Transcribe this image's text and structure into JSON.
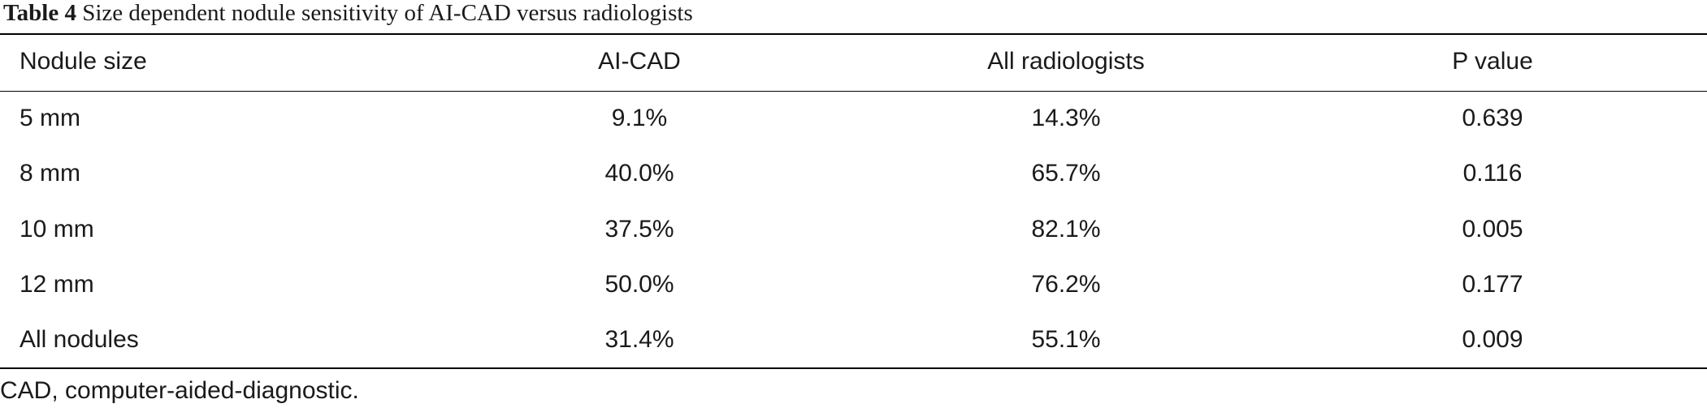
{
  "title": {
    "label": "Table 4",
    "text": "Size dependent nodule sensitivity of AI-CAD versus radiologists"
  },
  "table": {
    "header": [
      "Nodule size",
      "AI-CAD",
      "All radiologists",
      "P value"
    ],
    "rows": [
      [
        "5 mm",
        "9.1%",
        "14.3%",
        "0.639"
      ],
      [
        "8 mm",
        "40.0%",
        "65.7%",
        "0.116"
      ],
      [
        "10 mm",
        "37.5%",
        "82.1%",
        "0.005"
      ],
      [
        "12 mm",
        "50.0%",
        "76.2%",
        "0.177"
      ],
      [
        "All nodules",
        "31.4%",
        "55.1%",
        "0.009"
      ]
    ]
  },
  "footnote": "CAD, computer-aided-diagnostic."
}
